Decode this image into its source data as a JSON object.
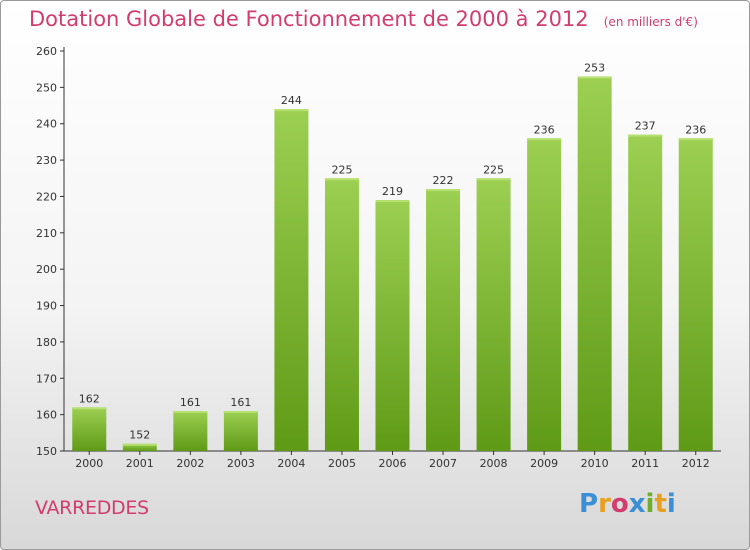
{
  "page": {
    "title": "Dotation Globale de Fonctionnement de 2000 à 2012",
    "subtitle": "(en milliers d'€)",
    "place": "VARREDDES",
    "logo": "Proxiti",
    "logo_colors": [
      "#3a8fd6",
      "#e8a020",
      "#d23c6e",
      "#3a8fd6",
      "#6fae2a",
      "#e8a020",
      "#3a8fd6"
    ]
  },
  "chart_data": {
    "type": "bar",
    "title": "Dotation Globale de Fonctionnement de 2000 à 2012",
    "subtitle": "(en milliers d'€)",
    "xlabel": "",
    "ylabel": "",
    "categories": [
      "2000",
      "2001",
      "2002",
      "2003",
      "2004",
      "2005",
      "2006",
      "2007",
      "2008",
      "2009",
      "2010",
      "2011",
      "2012"
    ],
    "values": [
      162,
      152,
      161,
      161,
      244,
      225,
      219,
      222,
      225,
      236,
      253,
      237,
      236
    ],
    "ylim": [
      150,
      260
    ],
    "yticks": [
      150,
      160,
      170,
      180,
      190,
      200,
      210,
      220,
      230,
      240,
      250,
      260
    ],
    "grid": false,
    "bar_color_top": "#9ccf52",
    "bar_color_bottom": "#5f9a16",
    "label_color": "#333333",
    "axis_color": "#333333"
  }
}
